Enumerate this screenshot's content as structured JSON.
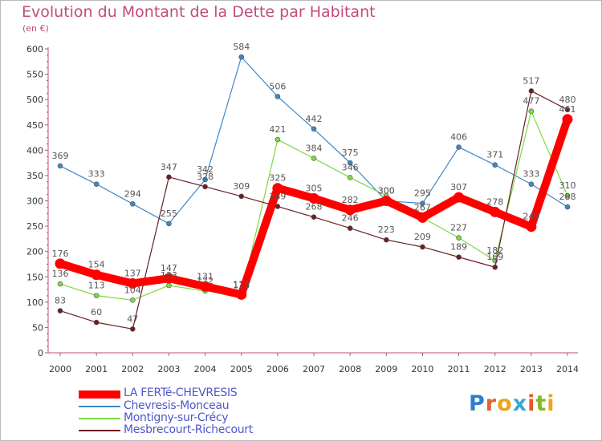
{
  "title": "Evolution du Montant de la Dette par Habitant",
  "subtitle": "(en €)",
  "brand": {
    "letters": [
      "P",
      "r",
      "o",
      "x",
      "i",
      "t",
      "i"
    ],
    "colors": [
      "#2f7fcf",
      "#e0642a",
      "#f0a21a",
      "#3aa9d8",
      "#e65a2a",
      "#86b828",
      "#f0a21a"
    ]
  },
  "chart_data": {
    "type": "line",
    "x": [
      2000,
      2001,
      2002,
      2003,
      2004,
      2005,
      2006,
      2007,
      2008,
      2009,
      2010,
      2011,
      2012,
      2013,
      2014
    ],
    "ylim": [
      0,
      600
    ],
    "yticks": [
      0,
      50,
      100,
      150,
      200,
      250,
      300,
      350,
      400,
      450,
      500,
      550,
      600
    ],
    "grid": false,
    "legend_position": "bottom-left",
    "series": [
      {
        "name": "LA FERTé-CHEVRESIS",
        "color": "#ff0000",
        "values": [
          176,
          154,
          137,
          147,
          131,
          115,
          325,
          305,
          282,
          300,
          267,
          307,
          278,
          249,
          461
        ],
        "labels": [
          "176",
          "154",
          "137",
          "147",
          "131",
          "115",
          "325",
          "305",
          "282",
          "300",
          "267",
          "307",
          "278",
          "249",
          "461"
        ],
        "style": "thick"
      },
      {
        "name": "Chevresis-Monceau",
        "color": "#3f86c6",
        "values": [
          369,
          333,
          294,
          255,
          342,
          584,
          506,
          442,
          375,
          300,
          295,
          406,
          371,
          333,
          288
        ],
        "labels": [
          "369",
          "333",
          "294",
          "255",
          "342",
          "584",
          "506",
          "442",
          "375",
          "300",
          "295",
          "406",
          "371",
          "333",
          "288"
        ],
        "style": "thin"
      },
      {
        "name": "Montigny-sur-Crécy",
        "color": "#7fd843",
        "values": [
          136,
          113,
          104,
          133,
          122,
          113,
          421,
          384,
          346,
          310,
          267,
          227,
          182,
          477,
          310
        ],
        "labels": [
          "136",
          "113",
          "104",
          "133",
          "122",
          "113",
          "421",
          "384",
          "346",
          "",
          "",
          "227",
          "182",
          "477",
          "310"
        ],
        "style": "thin"
      },
      {
        "name": "Mesbrecourt-Richecourt",
        "color": "#6b1f23",
        "values": [
          83,
          60,
          47,
          347,
          328,
          309,
          289,
          268,
          246,
          223,
          209,
          189,
          169,
          517,
          480
        ],
        "labels": [
          "83",
          "60",
          "47",
          "347",
          "328",
          "309",
          "289",
          "268",
          "246",
          "223",
          "209",
          "189",
          "169",
          "517",
          "480"
        ],
        "style": "thin"
      }
    ]
  }
}
